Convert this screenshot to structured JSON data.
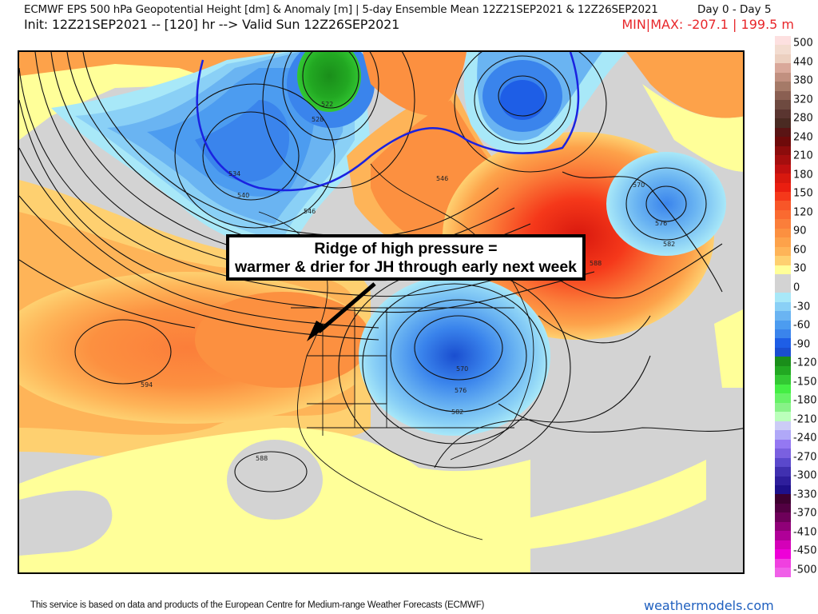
{
  "header": {
    "title": "ECMWF EPS 500 hPa Geopotential Height [dm] & Anomaly [m] | 5-day Ensemble Mean 12Z21SEP2021 & 12Z26SEP2021",
    "day_range": "Day 0 - Day 5",
    "init_line": "Init: 12Z21SEP2021 -- [120] hr --> Valid Sun 12Z26SEP2021",
    "minmax": "MIN|MAX: -207.1 | 199.5 m"
  },
  "map": {
    "region": "North America",
    "annotation": {
      "line1": "Ridge of high pressure =",
      "line2": "warmer & drier for JH through early next week"
    },
    "contour_labels": [
      "522",
      "528",
      "534",
      "540",
      "546",
      "570",
      "576",
      "582",
      "588",
      "594",
      "546",
      "570",
      "576",
      "582",
      "588"
    ],
    "colors": {
      "zero_gray": "#d3d3d3",
      "line_546_blue": "#1a22e0"
    }
  },
  "colorbar": {
    "labels": [
      "500",
      "440",
      "380",
      "320",
      "280",
      "240",
      "210",
      "180",
      "150",
      "120",
      "90",
      "60",
      "30",
      "0",
      "-30",
      "-60",
      "-90",
      "-120",
      "-150",
      "-180",
      "-210",
      "-240",
      "-270",
      "-300",
      "-330",
      "-370",
      "-410",
      "-450",
      "-500"
    ],
    "swatches": [
      "#fde0e0",
      "#f3dcd0",
      "#ecd0c0",
      "#d9a89a",
      "#c19080",
      "#a57a68",
      "#8a5f52",
      "#6e4a40",
      "#5a3530",
      "#4a2a22",
      "#5a1414",
      "#6e0a0a",
      "#8c0c0c",
      "#a50e0e",
      "#c01010",
      "#d8180e",
      "#ea1e10",
      "#f5381a",
      "#f85628",
      "#fa6a30",
      "#fb7e3a",
      "#fc9040",
      "#fda24a",
      "#feb458",
      "#fed070",
      "#ffff99",
      "#d3d3d3",
      "#d3d3d3",
      "#a8e8f8",
      "#8ad0f6",
      "#6ab4f2",
      "#4c9cf0",
      "#3a84ec",
      "#1e5ee6",
      "#1a4ed0",
      "#1a8e1a",
      "#22a822",
      "#33c833",
      "#44ee44",
      "#66f266",
      "#88f288",
      "#bbffbb",
      "#ccccf6",
      "#b0a8f8",
      "#9478f2",
      "#7a60e0",
      "#5a48cc",
      "#4030b0",
      "#2e1e9c",
      "#1e108a",
      "#3e0030",
      "#520042",
      "#6e005a",
      "#900078",
      "#b00098",
      "#d400b8",
      "#ee00d8",
      "#f040e0",
      "#f060e8"
    ]
  },
  "footer": {
    "credit": "This service is based on data and products of the European Centre for Medium-range Weather Forecasts (ECMWF)",
    "site": "weathermodels.com"
  }
}
